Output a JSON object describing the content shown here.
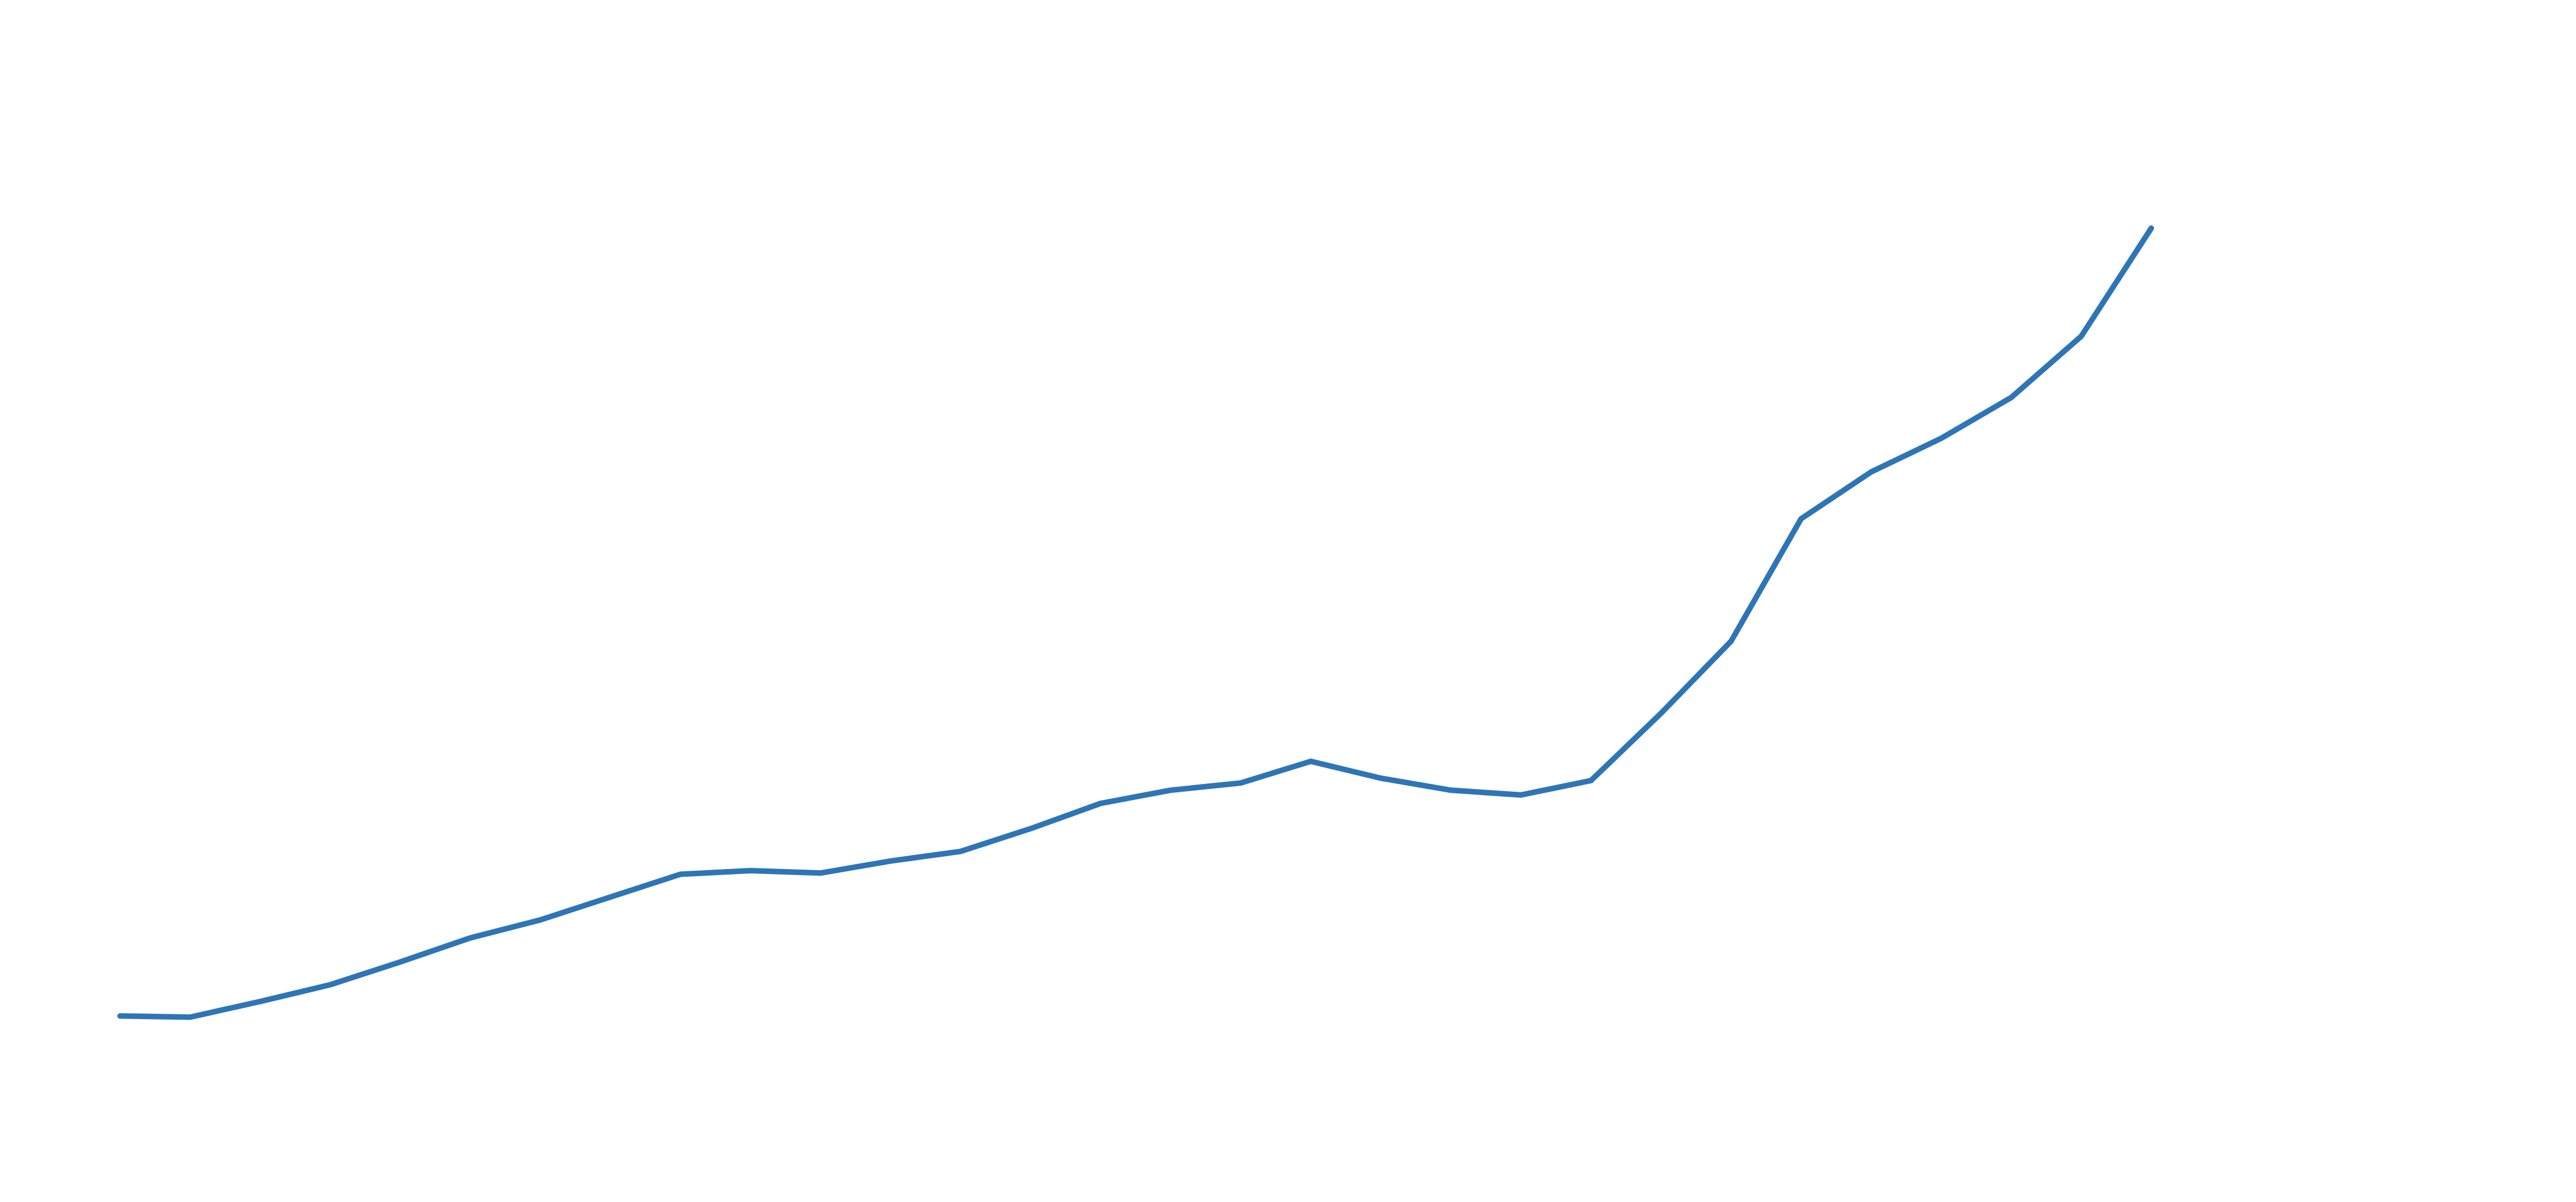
{
  "chart_data": {
    "type": "line",
    "title": "",
    "xlabel": "",
    "ylabel": "",
    "grid": false,
    "legend": "none",
    "x": [
      1,
      2,
      3,
      4,
      5,
      6,
      7,
      8,
      9,
      10,
      11,
      12,
      13,
      14,
      15,
      16,
      17,
      18,
      19,
      20,
      21,
      22,
      23,
      24,
      25,
      26,
      27,
      28,
      29,
      30
    ],
    "xlim": [
      0,
      35
    ],
    "ylim": [
      0,
      100
    ],
    "series": [
      {
        "color": "#2e75b6",
        "values": [
          15.4,
          15.3,
          16.6,
          18.0,
          19.9,
          21.9,
          23.4,
          25.3,
          27.2,
          27.5,
          27.3,
          28.3,
          29.1,
          31.0,
          33.1,
          34.2,
          34.8,
          36.6,
          35.2,
          34.2,
          33.8,
          35.0,
          40.6,
          46.6,
          56.8,
          60.7,
          63.5,
          66.9,
          72.0,
          81.0
        ]
      }
    ]
  }
}
